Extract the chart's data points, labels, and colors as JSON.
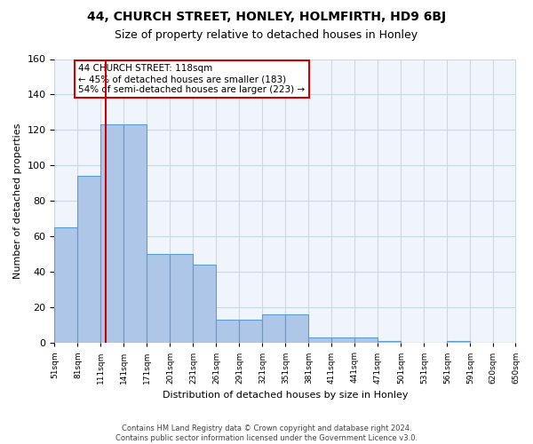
{
  "title": "44, CHURCH STREET, HONLEY, HOLMFIRTH, HD9 6BJ",
  "subtitle": "Size of property relative to detached houses in Honley",
  "xlabel": "Distribution of detached houses by size in Honley",
  "ylabel": "Number of detached properties",
  "bar_edges": [
    51,
    81,
    111,
    141,
    171,
    201,
    231,
    261,
    291,
    321,
    351,
    381,
    411,
    441,
    471,
    501,
    531,
    561,
    591,
    620,
    650
  ],
  "bar_heights": [
    65,
    94,
    123,
    123,
    50,
    50,
    44,
    13,
    13,
    16,
    16,
    3,
    3,
    3,
    1,
    0,
    0,
    1,
    0,
    0
  ],
  "bar_color": "#aec6e8",
  "bar_edgecolor": "#5a9fd4",
  "property_size": 118,
  "property_line_color": "#cc0000",
  "annotation_text": "44 CHURCH STREET: 118sqm\n← 45% of detached houses are smaller (183)\n54% of semi-detached houses are larger (223) →",
  "annotation_box_color": "#cc0000",
  "ylim": [
    0,
    160
  ],
  "yticks": [
    0,
    20,
    40,
    60,
    80,
    100,
    120,
    140,
    160
  ],
  "grid_color": "#c8d8e8",
  "background_color": "#f0f5fb",
  "footer_line1": "Contains HM Land Registry data © Crown copyright and database right 2024.",
  "footer_line2": "Contains public sector information licensed under the Government Licence v3.0."
}
